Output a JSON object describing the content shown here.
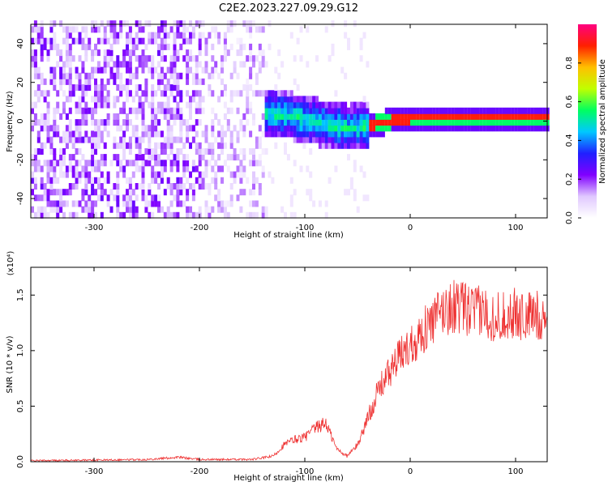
{
  "title": "C2E2.2023.227.09.29.G12",
  "chart_data": [
    {
      "type": "heatmap",
      "xlabel": "Height of straight line (km)",
      "ylabel": "Frequency (Hz)",
      "xlim": [
        -360,
        130
      ],
      "ylim": [
        -50,
        50
      ],
      "xticks": [
        -300,
        -200,
        -100,
        0,
        100
      ],
      "yticks": [
        -40,
        -20,
        0,
        20,
        40
      ],
      "colorbar": {
        "label": "Normalized spectral amplitude",
        "range": [
          0,
          1
        ],
        "ticks": [
          "0.0",
          "0.2",
          "0.4",
          "0.6",
          "0.8"
        ],
        "colormap": [
          "#ffffff",
          "#e0c8ff",
          "#8000ff",
          "#2020ff",
          "#00c8ff",
          "#00ff60",
          "#c0ff00",
          "#ffc000",
          "#ff2000",
          "#ff0080"
        ]
      },
      "regions": [
        {
          "x_range": [
            -360,
            -200
          ],
          "description_level": 0.1
        },
        {
          "x_range": [
            -200,
            -140
          ],
          "description_level": 0.08
        },
        {
          "x_range": [
            -130,
            -40
          ],
          "description_level": 0.35
        },
        {
          "x_range": [
            -40,
            130
          ],
          "description_level": 0.95
        }
      ],
      "ridge": {
        "x": [
          -160,
          -120,
          -80,
          -60,
          -40,
          -20,
          0,
          130
        ],
        "y": [
          3,
          2,
          -3,
          -5,
          -4,
          -1,
          0,
          0
        ]
      }
    },
    {
      "type": "line",
      "xlabel": "Height of straight line (km)",
      "ylabel": "SNR (10 * v/v)",
      "multiplier": "(x10⁴)",
      "xlim": [
        -360,
        130
      ],
      "ylim": [
        0,
        1.75
      ],
      "xticks": [
        -300,
        -200,
        -100,
        0,
        100
      ],
      "yticks": [
        "0.0",
        "0.5",
        "1.0",
        "1.5"
      ],
      "color": "#ee3030",
      "x": [
        -360,
        -300,
        -250,
        -220,
        -200,
        -150,
        -130,
        -120,
        -110,
        -100,
        -90,
        -80,
        -70,
        -60,
        -50,
        -40,
        -30,
        -20,
        -10,
        0,
        10,
        20,
        30,
        40,
        50,
        60,
        70,
        80,
        90,
        100,
        110,
        120,
        130
      ],
      "y": [
        0.01,
        0.015,
        0.02,
        0.04,
        0.02,
        0.02,
        0.05,
        0.15,
        0.2,
        0.22,
        0.3,
        0.35,
        0.12,
        0.05,
        0.15,
        0.4,
        0.65,
        0.8,
        0.95,
        1.05,
        1.15,
        1.25,
        1.35,
        1.4,
        1.38,
        1.35,
        1.35,
        1.3,
        1.32,
        1.33,
        1.3,
        1.32,
        1.3
      ]
    }
  ]
}
